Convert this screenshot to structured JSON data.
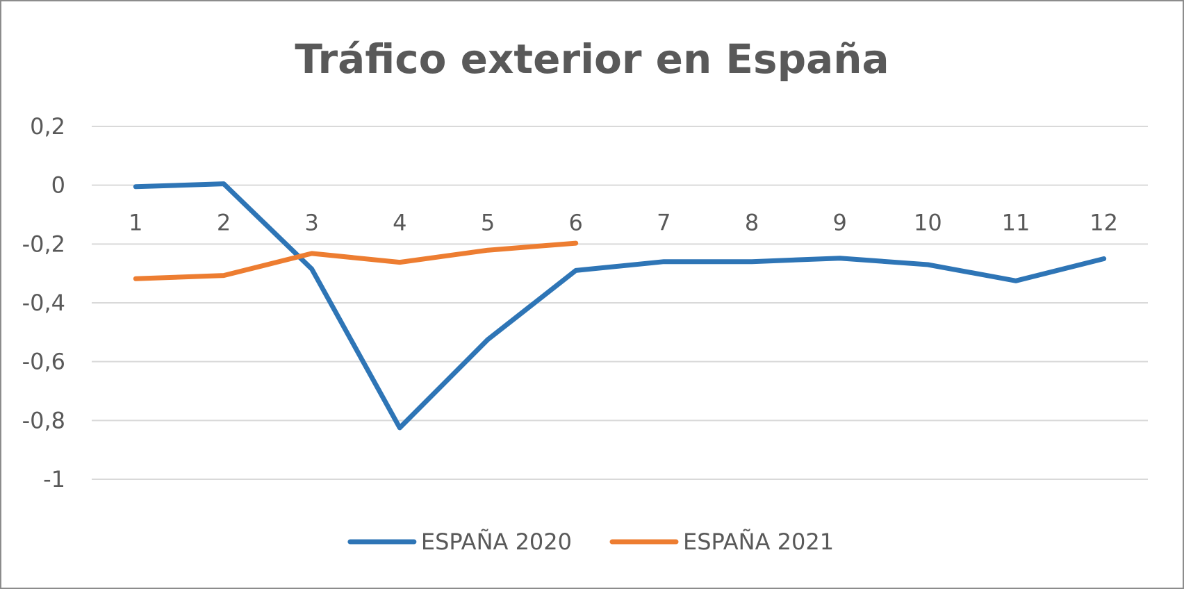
{
  "chart_data": {
    "type": "line",
    "title": "Tráfico exterior en España",
    "categories": [
      "1",
      "2",
      "3",
      "4",
      "5",
      "6",
      "7",
      "8",
      "9",
      "10",
      "11",
      "12"
    ],
    "ylim": [
      -1,
      0.2
    ],
    "yticks": [
      0.2,
      0,
      -0.2,
      -0.4,
      -0.6,
      -0.8,
      -1
    ],
    "ytick_labels": [
      "0,2",
      "0",
      "-0,2",
      "-0,4",
      "-0,6",
      "-0,8",
      "-1"
    ],
    "grid": true,
    "legend_position": "bottom",
    "series": [
      {
        "name": "ESPAÑA 2020",
        "color": "#2e75b6",
        "values": [
          -0.005,
          0.005,
          -0.285,
          -0.825,
          -0.525,
          -0.29,
          -0.26,
          -0.26,
          -0.248,
          -0.27,
          -0.325,
          -0.25
        ]
      },
      {
        "name": "ESPAÑA 2021",
        "color": "#ed7d31",
        "values": [
          -0.318,
          -0.307,
          -0.232,
          -0.262,
          -0.221,
          -0.197,
          null,
          null,
          null,
          null,
          null,
          null
        ]
      }
    ]
  }
}
